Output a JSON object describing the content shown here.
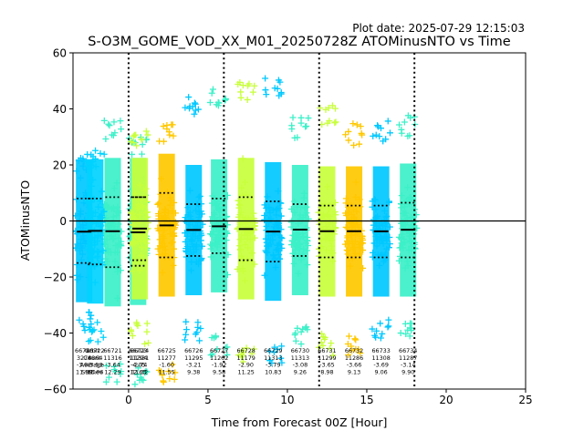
{
  "plot_date": "Plot date: 2025-07-29 12:15:03",
  "chart_data": {
    "type": "scatter",
    "title": "S-O3M_GOME_VOD_XX_M01_20250728Z ATOMinusNTO vs Time",
    "xlabel": "Time from Forecast 00Z [Hour]",
    "ylabel": "ATOMinusNTO",
    "xlim": [
      -3.5,
      25
    ],
    "ylim": [
      -60,
      60
    ],
    "xticks": [
      0,
      5,
      10,
      15,
      20,
      25
    ],
    "yticks": [
      -60,
      -40,
      -20,
      0,
      20,
      40,
      60
    ],
    "zero_line": 0,
    "forecast_lines_x": [
      0,
      6,
      12,
      18
    ],
    "grid": false,
    "legend": "none",
    "marker": "+",
    "colormap": [
      "#00c8ff",
      "#3cf0c8",
      "#c8ff3c",
      "#ffc800",
      "#ffe600"
    ],
    "row_labels": [
      "Orbit",
      "Count",
      "Average",
      "StdDev"
    ],
    "orbits": [
      {
        "orbit": "66720",
        "x": -2.8,
        "count": "3274",
        "mean": -3.82,
        "std": 11.99,
        "p_low": -15.0,
        "p_high": 8.0,
        "min": -40,
        "max": 25,
        "color": "#00c8ff"
      },
      {
        "orbit": "66721",
        "x": -1.0,
        "count": "11316",
        "mean": -3.64,
        "std": 12.29,
        "p_low": -16.5,
        "p_high": 8.5,
        "min": -58,
        "max": 36,
        "color": "#3cf0c8"
      },
      {
        "orbit": "66722",
        "x": -2.1,
        "count": "8864",
        "mean": -3.53,
        "std": 13.06,
        "p_low": -15.5,
        "p_high": 8.0,
        "min": -44,
        "max": 26,
        "color": "#00d2ff"
      },
      {
        "orbit": "66723",
        "x": 0.6,
        "count": "11294",
        "mean": -4.05,
        "std": 12.63,
        "p_low": -16.0,
        "p_high": 8.5,
        "min": -60,
        "max": 31,
        "color": "#3cf0c8"
      },
      {
        "orbit": "66724",
        "x": 0.7,
        "count": "11331",
        "mean": -2.74,
        "std": 11.32,
        "p_low": -14.0,
        "p_high": 8.5,
        "min": -44,
        "max": 33,
        "color": "#c8ff3c"
      },
      {
        "orbit": "66725",
        "x": 2.4,
        "count": "11277",
        "mean": -1.6,
        "std": 11.55,
        "p_low": -13.0,
        "p_high": 10.0,
        "min": -59,
        "max": 35,
        "color": "#ffc800"
      },
      {
        "orbit": "66726",
        "x": 4.1,
        "count": "11295",
        "mean": -3.21,
        "std": 9.38,
        "p_low": -12.5,
        "p_high": 6.0,
        "min": -44,
        "max": 46,
        "color": "#00c8ff"
      },
      {
        "orbit": "66727",
        "x": 5.7,
        "count": "11262",
        "mean": -1.92,
        "std": 9.58,
        "p_low": -11.5,
        "p_high": 8.0,
        "min": -48,
        "max": 49,
        "color": "#3cf0c8"
      },
      {
        "orbit": "66728",
        "x": 7.4,
        "count": "11179",
        "mean": -2.9,
        "std": 11.25,
        "p_low": -14.0,
        "p_high": 8.5,
        "min": -53,
        "max": 51,
        "color": "#c8ff3c"
      },
      {
        "orbit": "66729",
        "x": 9.1,
        "count": "11313",
        "mean": -3.79,
        "std": 10.83,
        "p_low": -14.5,
        "p_high": 7.0,
        "min": -52,
        "max": 51,
        "color": "#00c8ff"
      },
      {
        "orbit": "66730",
        "x": 10.8,
        "count": "11313",
        "mean": -3.08,
        "std": 9.26,
        "p_low": -12.5,
        "p_high": 6.0,
        "min": -45,
        "max": 37,
        "color": "#3cf0c8"
      },
      {
        "orbit": "66731",
        "x": 12.5,
        "count": "11299",
        "mean": -3.65,
        "std": 8.98,
        "p_low": -13.0,
        "p_high": 5.5,
        "min": -48,
        "max": 42,
        "color": "#c8ff3c"
      },
      {
        "orbit": "66732",
        "x": 14.2,
        "count": "11286",
        "mean": -3.66,
        "std": 9.13,
        "p_low": -13.0,
        "p_high": 5.5,
        "min": -48,
        "max": 35,
        "color": "#ffc800"
      },
      {
        "orbit": "66733",
        "x": 15.9,
        "count": "11308",
        "mean": -3.69,
        "std": 9.06,
        "p_low": -13.0,
        "p_high": 5.5,
        "min": -43,
        "max": 36,
        "color": "#00c8ff"
      },
      {
        "orbit": "66734",
        "x": 17.6,
        "count": "11287",
        "mean": -3.14,
        "std": 9.9,
        "p_low": -13.0,
        "p_high": 6.5,
        "min": -43,
        "max": 38,
        "color": "#3cf0c8"
      }
    ]
  }
}
